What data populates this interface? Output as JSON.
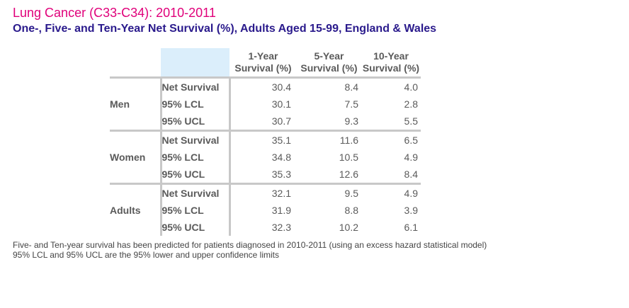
{
  "title": "Lung Cancer (C33-C34): 2010-2011",
  "subtitle": "One-, Five- and Ten-Year Net Survival (%), Adults Aged 15-99, England & Wales",
  "columns": [
    {
      "line1": "1-Year",
      "line2": "Survival (%)"
    },
    {
      "line1": "5-Year",
      "line2": "Survival (%)"
    },
    {
      "line1": "10-Year",
      "line2": "Survival (%)"
    }
  ],
  "chart_data": {
    "type": "table",
    "groups": [
      {
        "name": "Men",
        "rows": [
          {
            "measure": "Net Survival",
            "values": [
              "30.4",
              "8.4",
              "4.0"
            ]
          },
          {
            "measure": "95% LCL",
            "values": [
              "30.1",
              "7.5",
              "2.8"
            ]
          },
          {
            "measure": "95% UCL",
            "values": [
              "30.7",
              "9.3",
              "5.5"
            ]
          }
        ]
      },
      {
        "name": "Women",
        "rows": [
          {
            "measure": "Net Survival",
            "values": [
              "35.1",
              "11.6",
              "6.5"
            ]
          },
          {
            "measure": "95% LCL",
            "values": [
              "34.8",
              "10.5",
              "4.9"
            ]
          },
          {
            "measure": "95% UCL",
            "values": [
              "35.3",
              "12.6",
              "8.4"
            ]
          }
        ]
      },
      {
        "name": "Adults",
        "rows": [
          {
            "measure": "Net Survival",
            "values": [
              "32.1",
              "9.5",
              "4.9"
            ]
          },
          {
            "measure": "95% LCL",
            "values": [
              "31.9",
              "8.8",
              "3.9"
            ]
          },
          {
            "measure": "95% UCL",
            "values": [
              "32.3",
              "10.2",
              "6.1"
            ]
          }
        ]
      }
    ]
  },
  "notes": [
    "Five- and Ten-year survival has been predicted for patients diagnosed in 2010-2011 (using an excess hazard statistical model)",
    "95% LCL and 95% UCL are the 95% lower and upper confidence limits"
  ],
  "colors": {
    "title": "#e0007a",
    "subtitle": "#2a1a8c",
    "header_fill": "#dbeefb",
    "border": "#c8c8c8",
    "text": "#5a5a5a"
  }
}
